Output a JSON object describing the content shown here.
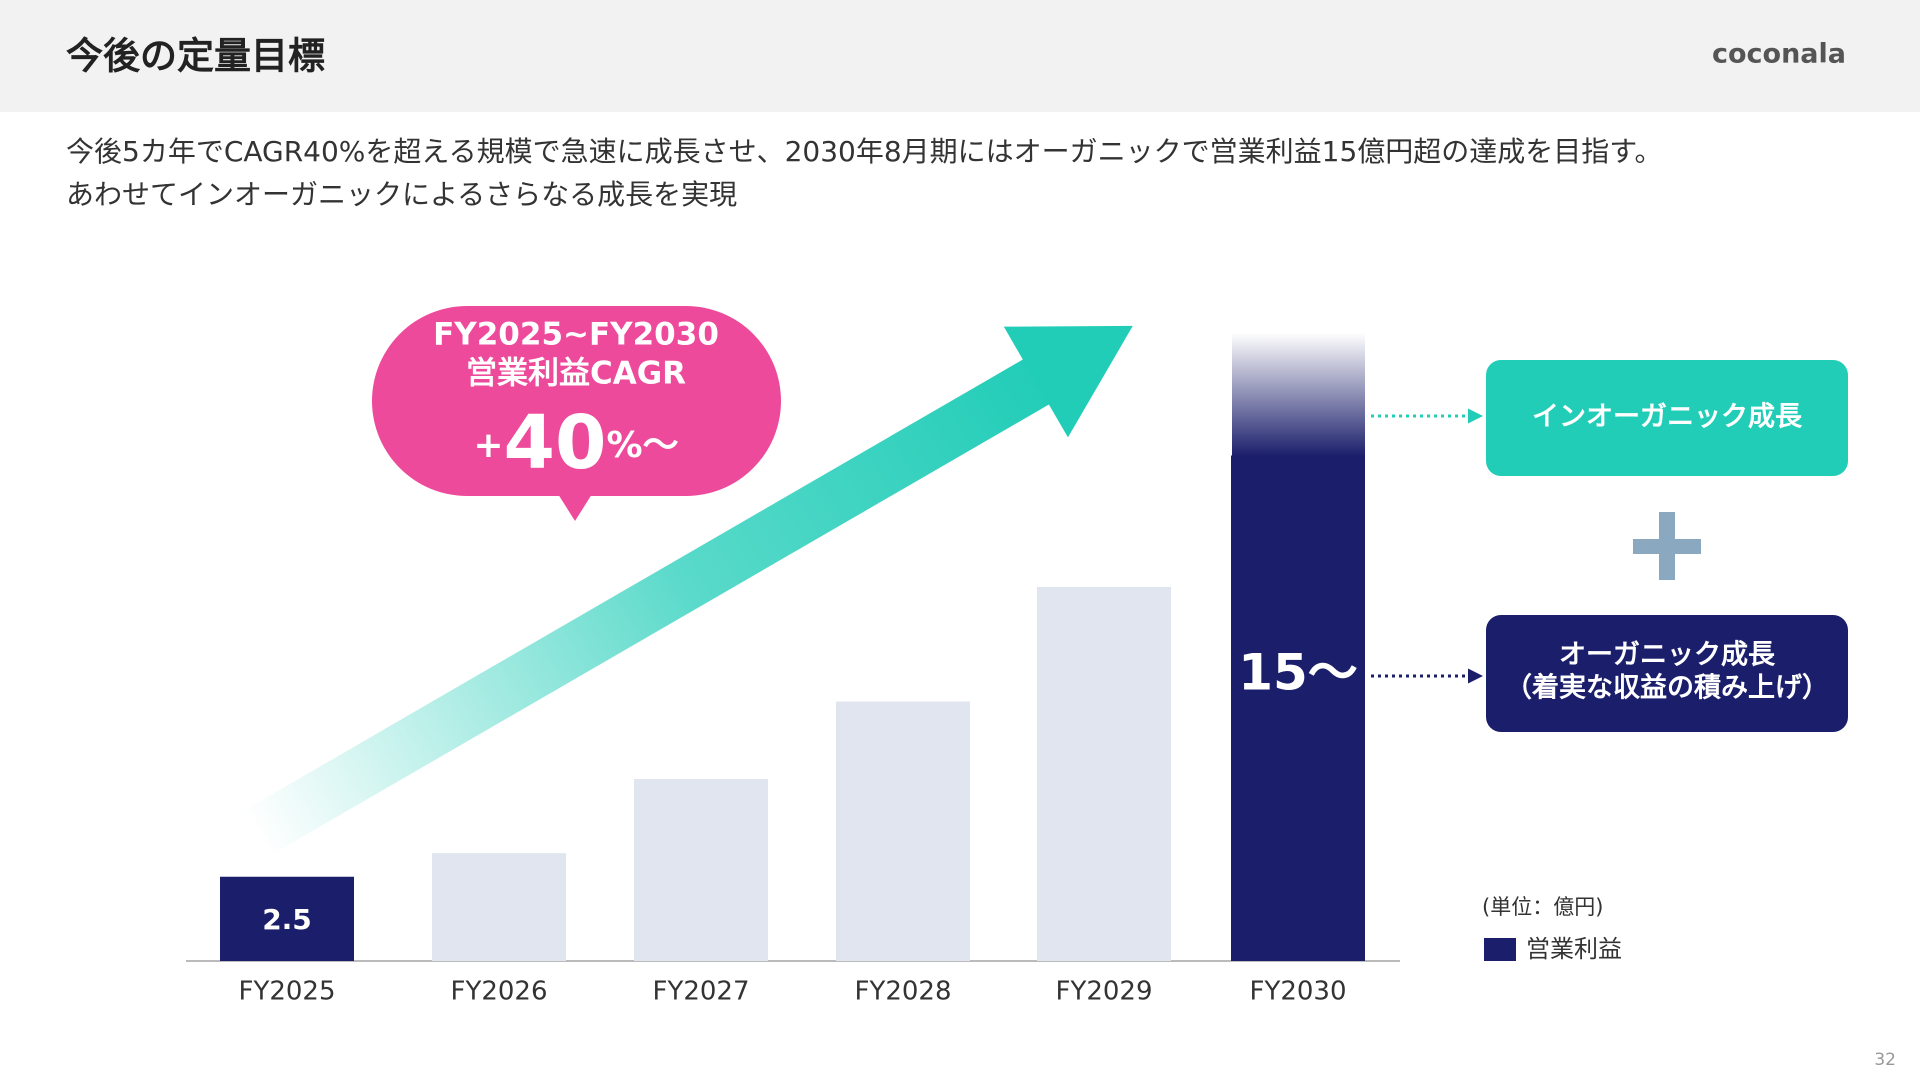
{
  "header": {
    "title": "今後の定量目標",
    "logo": "coconala"
  },
  "subtitle": [
    "今後5カ年でCAGR40%を超える規模で急速に成長させ、2030年8月期にはオーガニックで営業利益15億円超の達成を目指す。",
    "あわせてインオーガニックによるさらなる成長を実現"
  ],
  "chart_data": {
    "type": "bar",
    "categories": [
      "FY2025",
      "FY2026",
      "FY2027",
      "FY2028",
      "FY2029",
      "FY2030"
    ],
    "series": [
      {
        "name": "営業利益",
        "color": "#1b1f6b",
        "values": [
          2.5,
          3.2,
          5.4,
          7.7,
          11.1,
          15
        ],
        "value_labels": [
          "2.5",
          null,
          null,
          null,
          null,
          "15～"
        ],
        "colors": [
          "#1b1f6b",
          "#e0e5f0",
          "#e0e5f0",
          "#e0e5f0",
          "#e0e5f0",
          "#1b1f6b"
        ]
      }
    ],
    "ylim": [
      0,
      15
    ],
    "unit": "(単位：億円)",
    "callout": {
      "period": "FY2025~FY2030",
      "metric": "営業利益CAGR",
      "prefix": "+",
      "value": 40,
      "suffix": "%～"
    }
  },
  "growth_boxes": {
    "inorganic": "インオーガニック成長",
    "organic": [
      "オーガニック成長",
      "（着実な収益の積み上げ）"
    ]
  },
  "page_number": "32"
}
